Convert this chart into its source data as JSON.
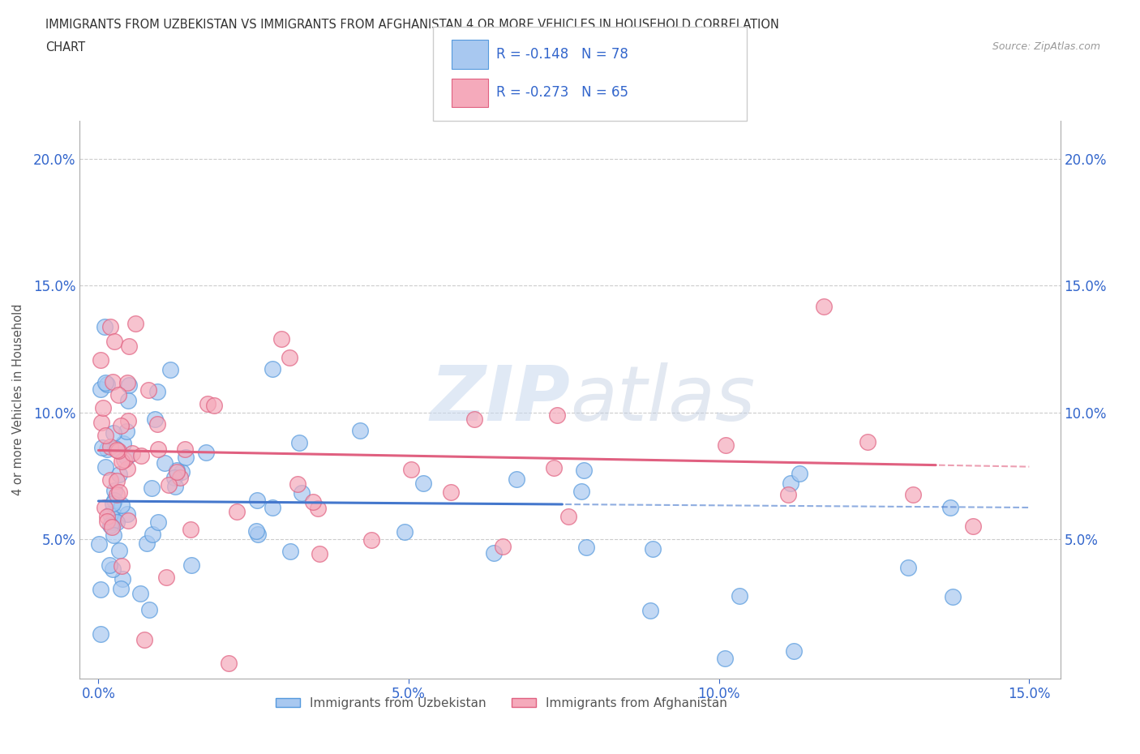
{
  "title_line1": "IMMIGRANTS FROM UZBEKISTAN VS IMMIGRANTS FROM AFGHANISTAN 4 OR MORE VEHICLES IN HOUSEHOLD CORRELATION",
  "title_line2": "CHART",
  "source_text": "Source: ZipAtlas.com",
  "ylabel": "4 or more Vehicles in Household",
  "xlim": [
    -0.003,
    0.155
  ],
  "ylim": [
    -0.005,
    0.215
  ],
  "xtick_labels": [
    "0.0%",
    "5.0%",
    "10.0%",
    "15.0%"
  ],
  "xtick_vals": [
    0.0,
    0.05,
    0.1,
    0.15
  ],
  "ytick_labels": [
    "5.0%",
    "10.0%",
    "15.0%",
    "20.0%"
  ],
  "ytick_vals": [
    0.05,
    0.1,
    0.15,
    0.2
  ],
  "legend_r1": "R = -0.148",
  "legend_n1": "N = 78",
  "legend_r2": "R = -0.273",
  "legend_n2": "N = 65",
  "color_uzbekistan": "#a8c8f0",
  "color_uzbekistan_edge": "#5599dd",
  "color_afghanistan": "#f5aabb",
  "color_afghanistan_edge": "#e06080",
  "color_line_blue": "#4477cc",
  "color_line_pink": "#e06080",
  "color_text_blue": "#3366cc",
  "watermark_zip": "ZIP",
  "watermark_atlas": "atlas",
  "legend_label1": "Immigrants from Uzbekistan",
  "legend_label2": "Immigrants from Afghanistan"
}
